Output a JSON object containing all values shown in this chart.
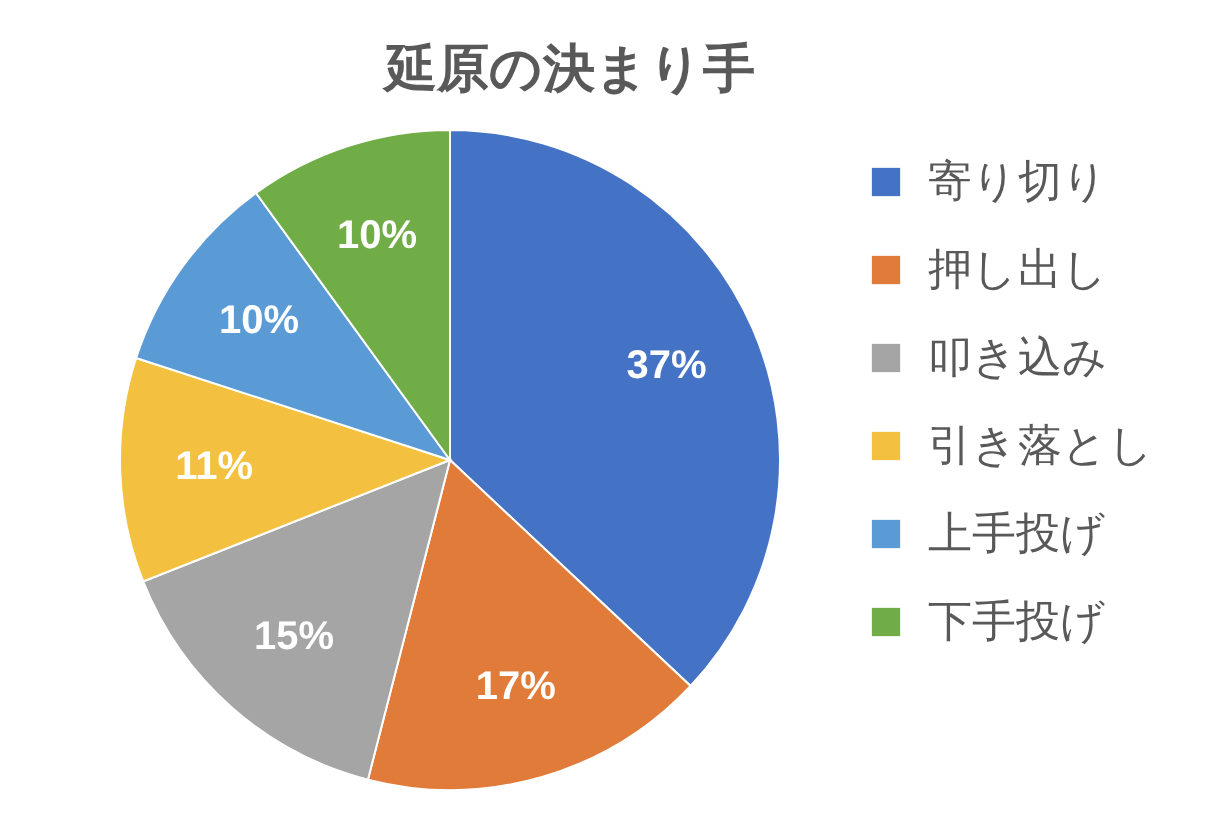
{
  "chart_data": {
    "type": "pie",
    "title": "延原の決まり手",
    "categories": [
      "寄り切り",
      "押し出し",
      "叩き込み",
      "引き落とし",
      "上手投げ",
      "下手投げ"
    ],
    "values": [
      37,
      17,
      15,
      11,
      10,
      10
    ],
    "value_labels": [
      "37%",
      "17%",
      "15%",
      "11%",
      "10%",
      "10%"
    ],
    "colors": [
      "#4472c4",
      "#e07b39",
      "#a5a5a5",
      "#f4c040",
      "#5b9bd5",
      "#70ad47"
    ],
    "legend": "right"
  }
}
